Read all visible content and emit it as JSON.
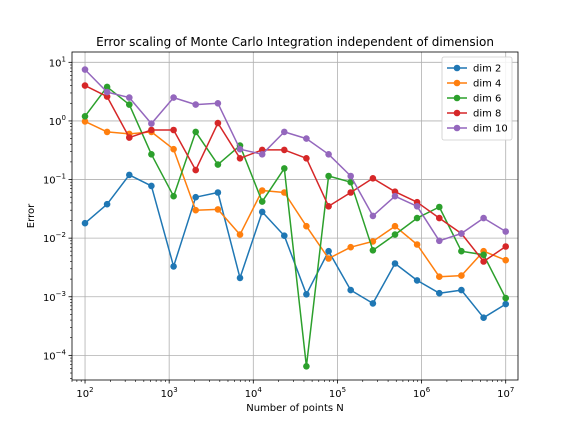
{
  "chart_data": {
    "type": "line",
    "title": "Error scaling of Monte Carlo Integration independent of dimension",
    "xlabel": "Number of points N",
    "ylabel": "Error",
    "xscale": "log",
    "yscale": "log",
    "xlim": [
      70,
      14000000
    ],
    "ylim": [
      3.8e-05,
      15
    ],
    "grid": true,
    "legend_position": "top-right",
    "x_ticks": [
      {
        "value": 100,
        "base": "10",
        "exp": "2"
      },
      {
        "value": 1000,
        "base": "10",
        "exp": "3"
      },
      {
        "value": 10000,
        "base": "10",
        "exp": "4"
      },
      {
        "value": 100000,
        "base": "10",
        "exp": "5"
      },
      {
        "value": 1000000,
        "base": "10",
        "exp": "6"
      },
      {
        "value": 10000000,
        "base": "10",
        "exp": "7"
      }
    ],
    "y_ticks": [
      {
        "value": 0.0001,
        "base": "10",
        "exp": "−4"
      },
      {
        "value": 0.001,
        "base": "10",
        "exp": "−3"
      },
      {
        "value": 0.01,
        "base": "10",
        "exp": "−2"
      },
      {
        "value": 0.1,
        "base": "10",
        "exp": "−1"
      },
      {
        "value": 1,
        "base": "10",
        "exp": "0"
      },
      {
        "value": 10,
        "base": "10",
        "exp": "1"
      }
    ],
    "x": [
      100,
      183,
      336,
      615,
      1129,
      2069,
      3793,
      6952,
      12742,
      23357,
      42813,
      78476,
      143845,
      263665,
      483293,
      885866,
      1623776,
      2976351,
      5455594,
      10000000
    ],
    "series": [
      {
        "name": "dim 2",
        "color": "#1f77b4",
        "values": [
          0.018,
          0.038,
          0.12,
          0.078,
          0.0033,
          0.05,
          0.06,
          0.0021,
          0.028,
          0.011,
          0.0011,
          0.006,
          0.0013,
          0.00077,
          0.0037,
          0.0019,
          0.00115,
          0.0013,
          0.00044,
          0.00075
        ]
      },
      {
        "name": "dim 4",
        "color": "#ff7f0e",
        "values": [
          0.98,
          0.65,
          0.6,
          0.65,
          0.33,
          0.03,
          0.031,
          0.0115,
          0.065,
          0.06,
          0.016,
          0.0045,
          0.007,
          0.0088,
          0.016,
          0.0078,
          0.0022,
          0.0023,
          0.006,
          0.0042
        ]
      },
      {
        "name": "dim 6",
        "color": "#2ca02c",
        "values": [
          1.2,
          3.8,
          1.9,
          0.27,
          0.052,
          0.65,
          0.18,
          0.38,
          0.042,
          0.155,
          6.5e-05,
          0.115,
          0.09,
          0.0062,
          0.0115,
          0.022,
          0.034,
          0.006,
          0.0052,
          0.00095
        ]
      },
      {
        "name": "dim 8",
        "color": "#d62728",
        "values": [
          4.0,
          2.6,
          0.52,
          0.7,
          0.7,
          0.145,
          0.92,
          0.23,
          0.32,
          0.32,
          0.23,
          0.035,
          0.06,
          0.105,
          0.062,
          0.041,
          0.022,
          0.012,
          0.004,
          0.0072
        ]
      },
      {
        "name": "dim 10",
        "color": "#9467bd",
        "values": [
          7.5,
          3.1,
          2.5,
          0.9,
          2.5,
          1.9,
          2.0,
          0.33,
          0.27,
          0.65,
          0.5,
          0.27,
          0.115,
          0.024,
          0.052,
          0.035,
          0.009,
          0.012,
          0.022,
          0.013
        ]
      }
    ]
  }
}
